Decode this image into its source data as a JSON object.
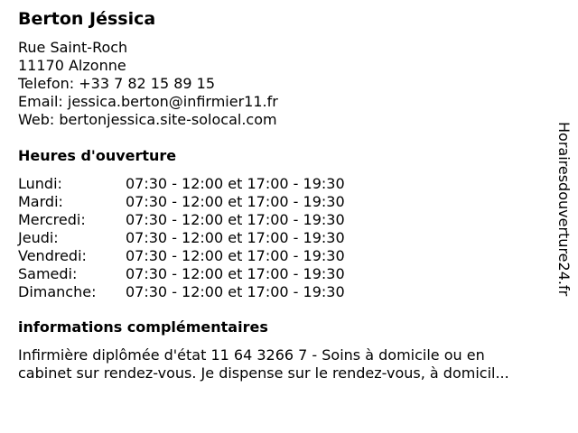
{
  "name": "Berton Jéssica",
  "address": [
    " Rue Saint-Roch",
    "11170 Alzonne"
  ],
  "phone": "Telefon: +33 7 82 15 89 15",
  "email": "Email: jessica.berton@infirmier11.fr",
  "web": "Web: bertonjessica.site-solocal.com",
  "hours_heading": "Heures d'ouverture",
  "hours": [
    {
      "day": "Lundi:",
      "time": "07:30 - 12:00 et 17:00 - 19:30"
    },
    {
      "day": "Mardi:",
      "time": "07:30 - 12:00 et 17:00 - 19:30"
    },
    {
      "day": "Mercredi:",
      "time": "07:30 - 12:00 et 17:00 - 19:30"
    },
    {
      "day": "Jeudi:",
      "time": "07:30 - 12:00 et 17:00 - 19:30"
    },
    {
      "day": "Vendredi:",
      "time": "07:30 - 12:00 et 17:00 - 19:30"
    },
    {
      "day": "Samedi:",
      "time": "07:30 - 12:00 et 17:00 - 19:30"
    },
    {
      "day": "Dimanche:",
      "time": "07:30 - 12:00 et 17:00 - 19:30"
    }
  ],
  "info_heading": "informations complémentaires",
  "info_lines": [
    "Infirmière diplômée d'état 11 64 3266 7 - Soins à domicile ou en",
    "cabinet sur rendez-vous. Je dispense sur le rendez-vous, à domicil..."
  ],
  "watermark": "Horairesdouverture24.fr"
}
